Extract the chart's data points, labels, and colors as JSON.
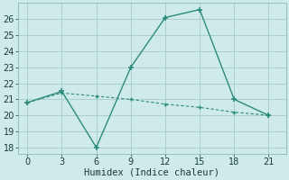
{
  "xlabel": "Humidex (Indice chaleur)",
  "line1_x": [
    0,
    3,
    6,
    9,
    12,
    15,
    18,
    21
  ],
  "line1_y": [
    20.8,
    21.5,
    18.0,
    23.0,
    26.1,
    26.6,
    21.0,
    20.0
  ],
  "line2_x": [
    0,
    3,
    6,
    9,
    12,
    15,
    18,
    21
  ],
  "line2_y": [
    20.8,
    21.4,
    21.2,
    21.0,
    20.7,
    20.5,
    20.2,
    20.0
  ],
  "line_color": "#2d8b7a",
  "bg_color": "#ceeaea",
  "grid_color": "#aacfcf",
  "xlim": [
    -0.8,
    22.5
  ],
  "ylim": [
    17.6,
    27.0
  ],
  "xticks": [
    0,
    3,
    6,
    9,
    12,
    15,
    18,
    21
  ],
  "yticks": [
    18,
    19,
    20,
    21,
    22,
    23,
    24,
    25,
    26
  ],
  "xlabel_fontsize": 7.5,
  "tick_fontsize": 7.0
}
